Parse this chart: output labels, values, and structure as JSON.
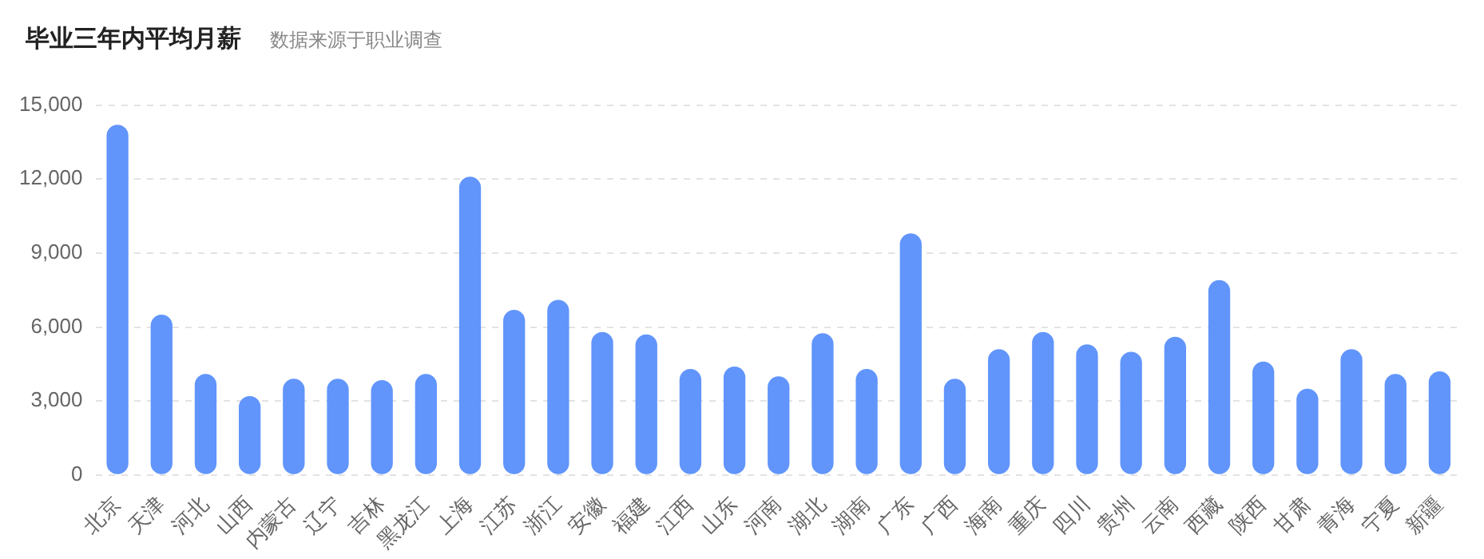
{
  "chart_data": {
    "type": "bar",
    "title": "毕业三年内平均月薪",
    "subtitle": "数据来源于职业调查",
    "categories": [
      "北京",
      "天津",
      "河北",
      "山西",
      "内蒙古",
      "辽宁",
      "吉林",
      "黑龙江",
      "上海",
      "江苏",
      "浙江",
      "安徽",
      "福建",
      "江西",
      "山东",
      "河南",
      "湖北",
      "湖南",
      "广东",
      "广西",
      "海南",
      "重庆",
      "四川",
      "贵州",
      "云南",
      "西藏",
      "陕西",
      "甘肃",
      "青海",
      "宁夏",
      "新疆"
    ],
    "values": [
      14200,
      6500,
      4100,
      3200,
      3900,
      3900,
      3850,
      4100,
      12100,
      6700,
      7100,
      5800,
      5700,
      4300,
      4400,
      4000,
      5750,
      4300,
      9800,
      3900,
      5100,
      5800,
      5300,
      5000,
      5600,
      7900,
      4600,
      3500,
      5100,
      4100,
      4200
    ],
    "color": "#6195fc",
    "ylim": [
      0,
      15000
    ],
    "yticks": [
      0,
      {
        "value": 3000,
        "label": "3,000"
      },
      {
        "value": 6000,
        "label": "6,000"
      },
      {
        "value": 9000,
        "label": "9,000"
      },
      {
        "value": 12000,
        "label": "12,000"
      },
      {
        "value": 15000,
        "label": "15,000"
      }
    ],
    "grid": "y"
  }
}
